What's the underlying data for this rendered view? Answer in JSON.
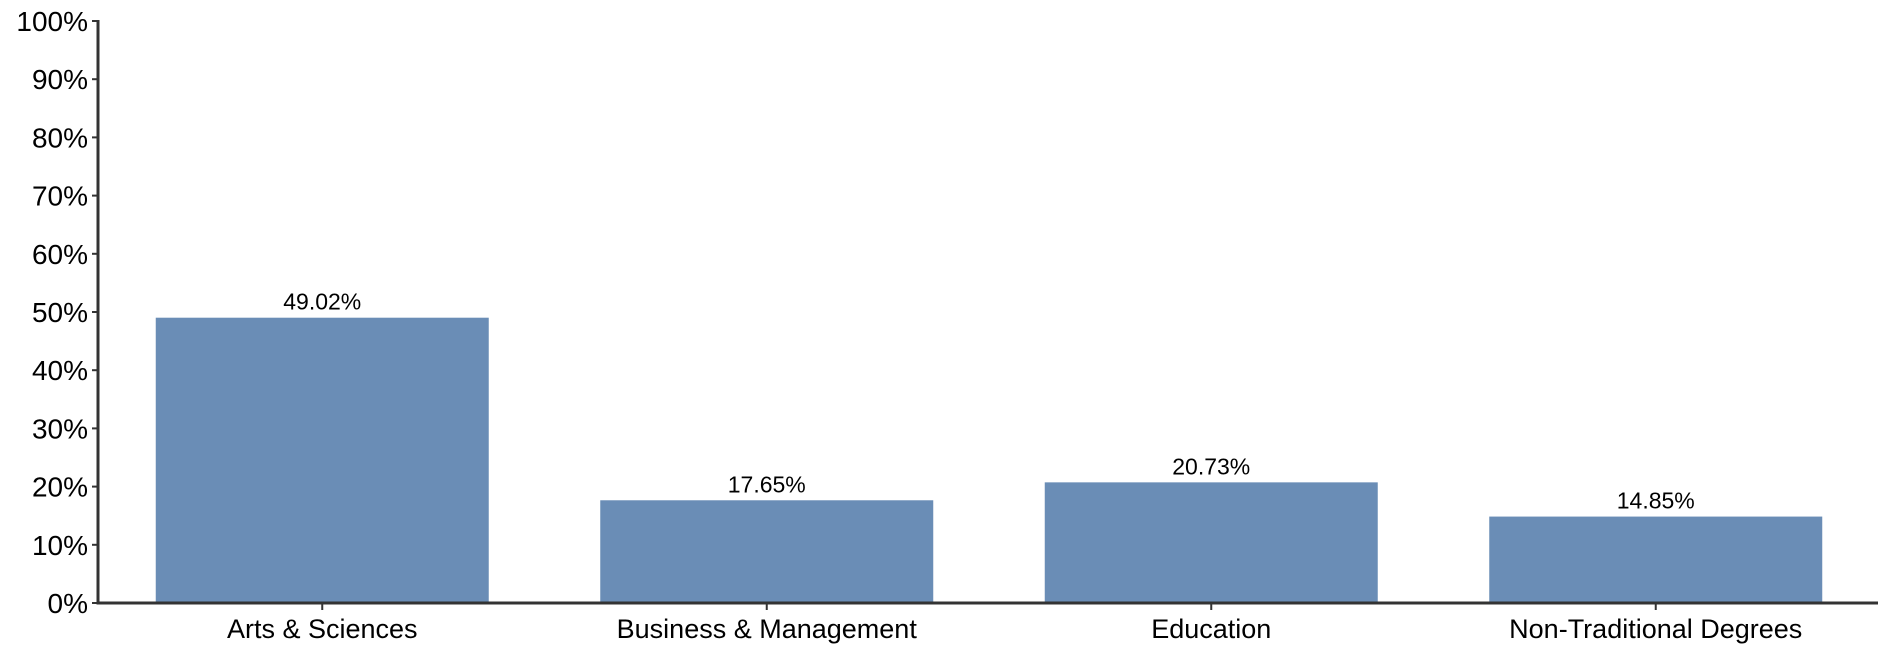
{
  "chart_data": {
    "type": "bar",
    "title": "",
    "xlabel": "",
    "ylabel": "",
    "categories": [
      "Arts & Sciences",
      "Business & Management",
      "Education",
      "Non-Traditional Degrees"
    ],
    "values": [
      49.02,
      17.65,
      20.73,
      14.85
    ],
    "data_labels": [
      "49.02%",
      "17.65%",
      "20.73%",
      "14.85%"
    ],
    "ylim": [
      0,
      100
    ],
    "yticks": [
      0,
      10,
      20,
      30,
      40,
      50,
      60,
      70,
      80,
      90,
      100
    ],
    "ytick_labels": [
      "0%",
      "10%",
      "20%",
      "30%",
      "40%",
      "50%",
      "60%",
      "70%",
      "80%",
      "90%",
      "100%"
    ],
    "grid": false,
    "legend": "none",
    "colors": {
      "bar": "#6a8db6",
      "axis": "#333333"
    }
  }
}
